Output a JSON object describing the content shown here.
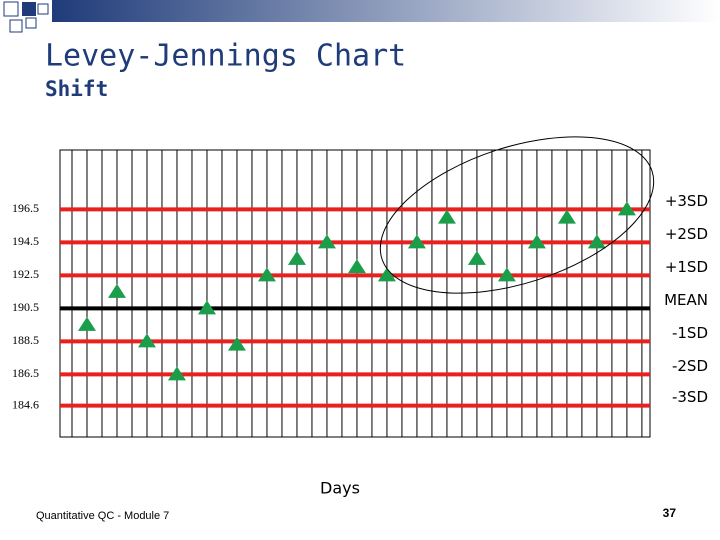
{
  "chart_data": {
    "type": "levey-jennings",
    "title": "Levey-Jennings Chart",
    "subtitle": "Shift",
    "x_label": "Days",
    "x": [
      1,
      2,
      3,
      4,
      5,
      6,
      7,
      8,
      9,
      10,
      11,
      12,
      13,
      14,
      15,
      16,
      17,
      18,
      19
    ],
    "values": [
      189.5,
      191.5,
      188.5,
      186.5,
      190.5,
      188.3,
      192.5,
      193.5,
      194.5,
      193,
      192.5,
      194.5,
      196,
      193.5,
      192.5,
      194.5,
      196,
      194.5,
      196.5
    ],
    "color": "#1a9e4a",
    "xlim": [
      0.1,
      19.77
    ],
    "xticks": [
      0.5,
      1,
      1.5,
      2,
      2.5,
      3,
      3.5,
      4,
      4.5,
      5,
      5.5,
      6,
      6.5,
      7,
      7.5,
      8,
      8.5,
      9,
      9.5,
      10,
      10.5,
      11,
      11.5,
      12,
      12.5,
      13,
      13.5,
      14,
      14.5,
      15,
      15.5,
      16,
      16.5,
      17,
      17.5,
      18,
      18.5,
      19,
      19.5
    ],
    "ylim": [
      182.7,
      200.1
    ],
    "yticks": [
      196.5,
      194.5,
      192.5,
      190.5,
      188.5,
      186.5,
      184.6
    ],
    "ytick_right_labels": [
      "+3SD",
      "+2SD",
      "+1SD",
      "MEAN",
      "-1SD",
      "-2SD",
      "-3SD"
    ],
    "footer": "Quantitative QC - Module 7",
    "page_number": "37"
  }
}
